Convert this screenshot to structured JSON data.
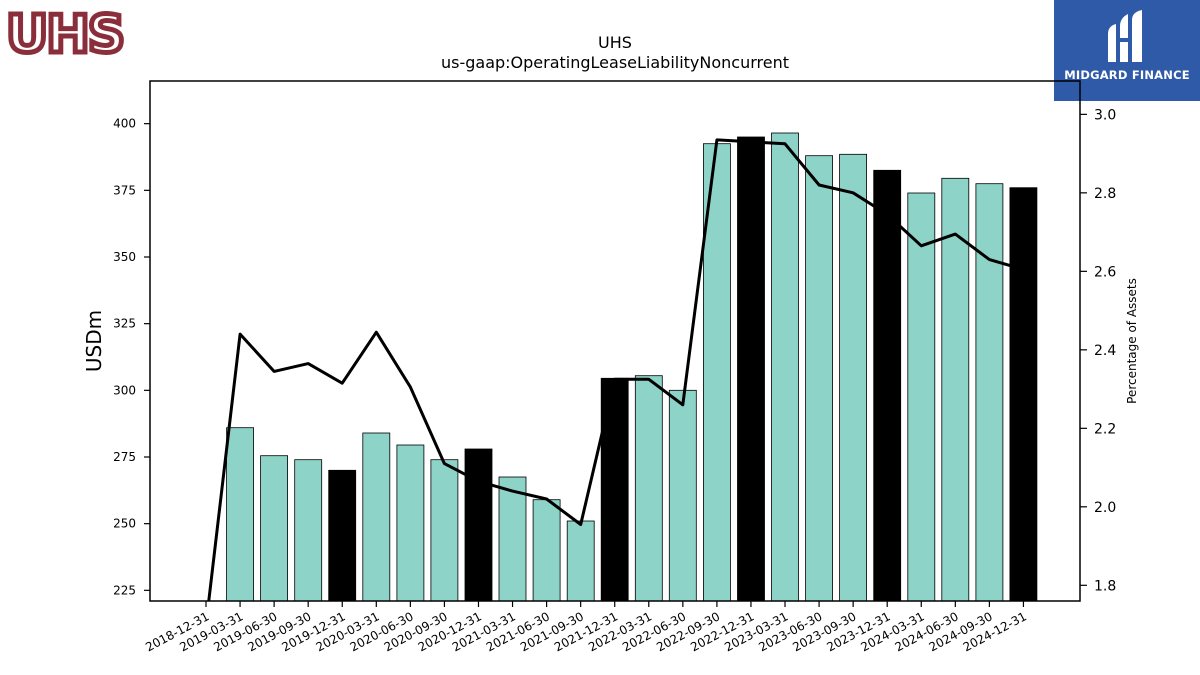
{
  "company_logo": {
    "text": "UHS",
    "color": "#8b2e3c"
  },
  "brand_logo": {
    "text": "MIDGARD FINANCE",
    "background": "#2f5aa8"
  },
  "chart_data": {
    "type": "bar",
    "title": "UHS",
    "subtitle": "us-gaap:OperatingLeaseLiabilityNoncurrent",
    "ylabel": "USDm",
    "y2label": "Percentage of Assets",
    "ylim": [
      221,
      416
    ],
    "y2lim": [
      1.76,
      3.085
    ],
    "yticks": [
      225,
      250,
      275,
      300,
      325,
      350,
      375,
      400
    ],
    "y2ticks": [
      1.8,
      2.0,
      2.2,
      2.4,
      2.6,
      2.8,
      3.0
    ],
    "categories": [
      "2018-12-31",
      "2019-03-31",
      "2019-06-30",
      "2019-09-30",
      "2019-12-31",
      "2020-03-31",
      "2020-06-30",
      "2020-09-30",
      "2020-12-31",
      "2021-03-31",
      "2021-06-30",
      "2021-09-30",
      "2021-12-31",
      "2022-03-31",
      "2022-06-30",
      "2022-09-30",
      "2022-12-31",
      "2023-03-31",
      "2023-06-30",
      "2023-09-30",
      "2023-12-31",
      "2024-03-31",
      "2024-06-30",
      "2024-09-30",
      "2024-12-31"
    ],
    "series": [
      {
        "kind": "bar",
        "values": [
          null,
          286,
          275.5,
          274,
          270,
          284,
          279.5,
          274,
          278,
          267.5,
          259,
          251,
          304.5,
          305.5,
          300,
          392.5,
          395,
          396.5,
          388,
          388.5,
          382.5,
          374,
          379.5,
          377.5,
          376
        ]
      },
      {
        "kind": "line",
        "axis": "right",
        "values": [
          1.7,
          2.44,
          2.345,
          2.365,
          2.315,
          2.445,
          2.305,
          2.11,
          2.065,
          2.04,
          2.02,
          1.955,
          2.325,
          2.325,
          2.26,
          2.935,
          2.93,
          2.925,
          2.82,
          2.8,
          2.745,
          2.665,
          2.695,
          2.63,
          2.605
        ]
      }
    ],
    "fiscal_year_end_bars": [
      "2019-12-31",
      "2020-12-31",
      "2021-12-31",
      "2022-12-31",
      "2023-12-31",
      "2024-12-31"
    ],
    "colors": {
      "bar": "#8dd3c7",
      "year_end_bar": "#000000",
      "line": "#000000"
    },
    "grid": false,
    "legend": "none"
  }
}
